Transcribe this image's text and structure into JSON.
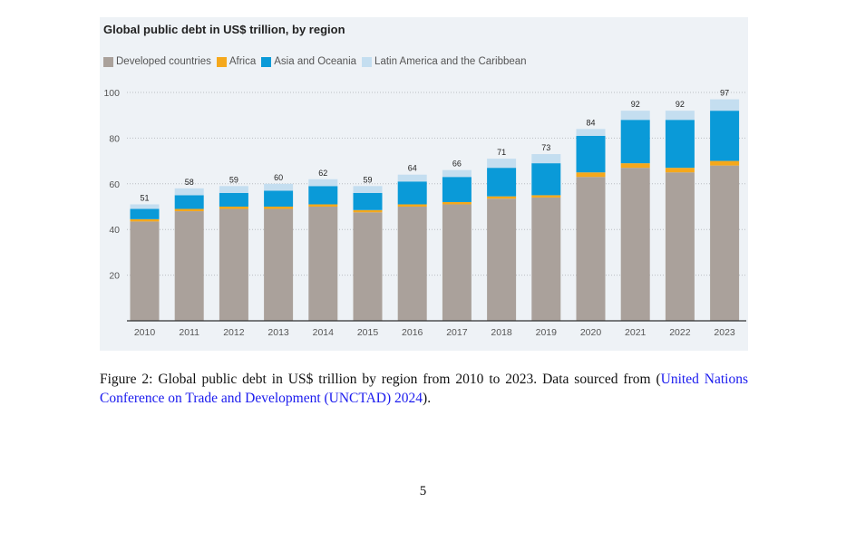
{
  "chart_data": {
    "type": "bar",
    "stacked": true,
    "title": "Global public debt in US$ trillion, by region",
    "categories": [
      "2010",
      "2011",
      "2012",
      "2013",
      "2014",
      "2015",
      "2016",
      "2017",
      "2018",
      "2019",
      "2020",
      "2021",
      "2022",
      "2023"
    ],
    "series": [
      {
        "name": "Developed countries",
        "color": "#aaa19b",
        "values": [
          43.5,
          48,
          49,
          49,
          50,
          47.5,
          50,
          51,
          53.5,
          54,
          63,
          67,
          65,
          68
        ]
      },
      {
        "name": "Africa",
        "color": "#f5a81c",
        "values": [
          1,
          1,
          1,
          1,
          1,
          1,
          1,
          1,
          1,
          1,
          2,
          2,
          2,
          2
        ]
      },
      {
        "name": "Asia and Oceania",
        "color": "#0a9ad8",
        "values": [
          4.5,
          6,
          6,
          7,
          8,
          7.5,
          10,
          11,
          12.5,
          14,
          16,
          19,
          21,
          22
        ]
      },
      {
        "name": "Latin America and the Caribbean",
        "color": "#c4def0",
        "values": [
          2,
          3,
          3,
          3,
          3,
          3,
          3,
          3,
          4,
          4,
          3,
          4,
          4,
          5
        ]
      }
    ],
    "totals": [
      "51",
      "58",
      "59",
      "60",
      "62",
      "59",
      "64",
      "66",
      "71",
      "73",
      "84",
      "92",
      "92",
      "97"
    ],
    "ylim": [
      0,
      100
    ],
    "yticks": [
      "20",
      "40",
      "60",
      "80",
      "100"
    ],
    "ytick_values": [
      20,
      40,
      60,
      80,
      100
    ],
    "xlabel": "",
    "ylabel": "",
    "grid": true,
    "legend_position": "top-left"
  },
  "caption": {
    "text": "Figure 2: Global public debt in US$ trillion by region from 2010 to 2023. Data sourced from (",
    "link_text": "United Nations Conference on Trade and Development (UNCTAD) 2024",
    "end": ")."
  },
  "page_number": "5"
}
